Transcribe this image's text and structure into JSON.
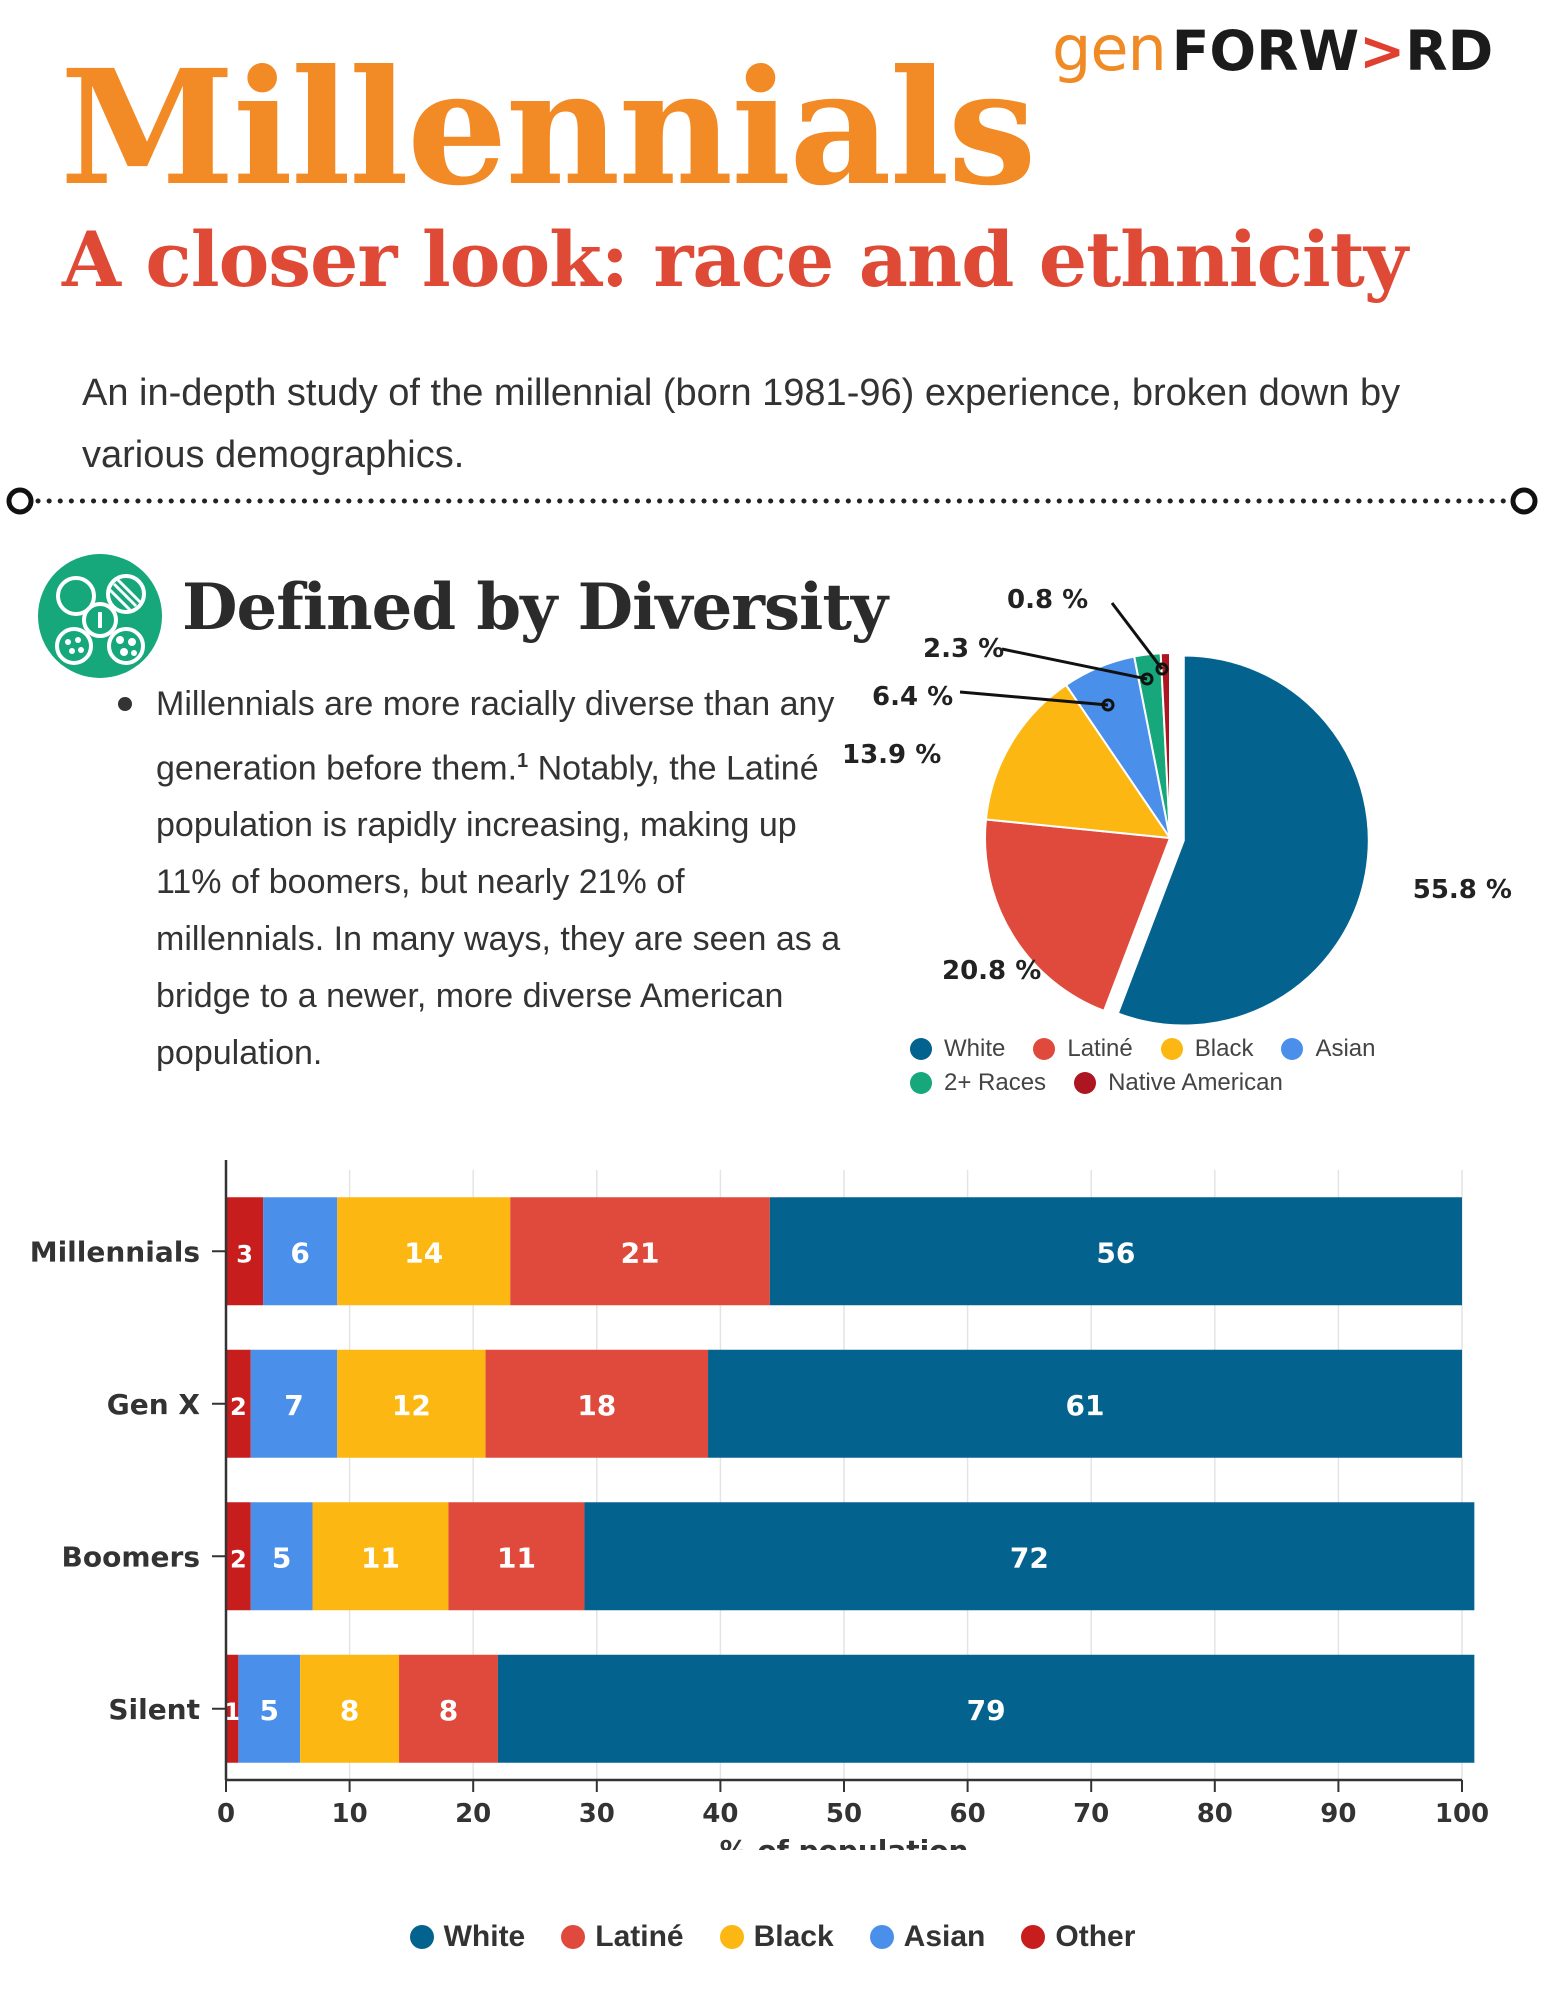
{
  "logo": {
    "part1": "gen",
    "part2a": "FORW",
    "part2b": ">",
    "part2c": "RD"
  },
  "header": {
    "title": "Millennials",
    "subtitle": "A closer look: race and ethnicity",
    "intro": "An in-depth study of the millennial (born 1981-96) experience, broken down by various demographics."
  },
  "section": {
    "title": "Defined by Diversity",
    "bullet": "Millennials are more racially diverse than any generation before them.",
    "bullet_sup": "1",
    "bullet_cont": " Notably, the Latiné population is rapidly increasing, making up 11% of boomers, but nearly 21% of millennials. In many ways, they are seen as a bridge to a newer, more diverse American population."
  },
  "colors": {
    "white": "#04628f",
    "latine": "#e04a3c",
    "black": "#fcb712",
    "asian": "#4a90ea",
    "two_plus": "#16a77a",
    "native": "#ad1620",
    "other": "#c81d1d"
  },
  "chart_data": [
    {
      "type": "pie",
      "labels": [
        "White",
        "Latiné",
        "Black",
        "Asian",
        "2+ Races",
        "Native American"
      ],
      "values": [
        55.8,
        20.8,
        13.9,
        6.4,
        2.3,
        0.8
      ],
      "value_labels": [
        "55.8 %",
        "20.8 %",
        "13.9 %",
        "6.4 %",
        "2.3 %",
        "0.8 %"
      ],
      "legend": "bottom",
      "exploded": "White"
    },
    {
      "type": "bar",
      "orientation": "horizontal",
      "stacked": true,
      "categories": [
        "Millennials",
        "Gen X",
        "Boomers",
        "Silent"
      ],
      "series": [
        {
          "name": "Other",
          "values": [
            3,
            2,
            2,
            1
          ]
        },
        {
          "name": "Asian",
          "values": [
            6,
            7,
            5,
            5
          ]
        },
        {
          "name": "Black",
          "values": [
            14,
            12,
            11,
            8
          ]
        },
        {
          "name": "Latiné",
          "values": [
            21,
            18,
            11,
            8
          ]
        },
        {
          "name": "White",
          "values": [
            56,
            61,
            72,
            79
          ]
        }
      ],
      "xlabel": "% of population",
      "xlim": [
        0,
        100
      ],
      "xticks": [
        0,
        10,
        20,
        30,
        40,
        50,
        60,
        70,
        80,
        90,
        100
      ],
      "grid": true,
      "legend": "bottom",
      "legend_order": [
        "White",
        "Latiné",
        "Black",
        "Asian",
        "Other"
      ]
    }
  ]
}
